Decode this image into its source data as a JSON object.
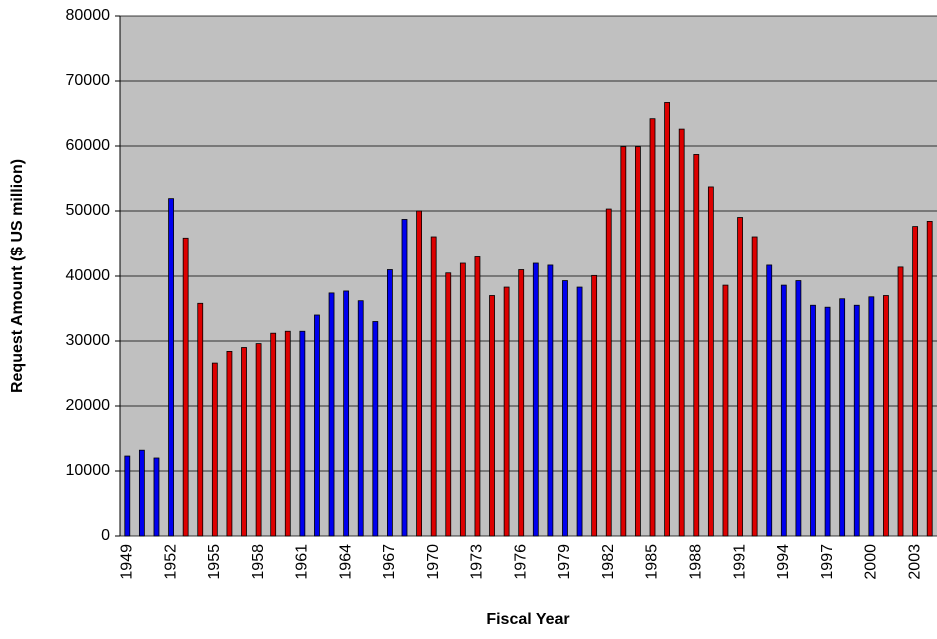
{
  "chart_data": {
    "type": "bar",
    "xlabel": "Fiscal Year",
    "ylabel": "Request Amount ($ US million)",
    "categories": [
      "1949",
      null,
      null,
      "1952",
      null,
      null,
      "1955",
      null,
      null,
      "1958",
      null,
      null,
      "1961",
      null,
      null,
      "1964",
      null,
      null,
      "1967",
      null,
      null,
      "1970",
      null,
      null,
      "1973",
      null,
      null,
      "1976",
      null,
      null,
      "1979",
      null,
      null,
      "1982",
      null,
      null,
      "1985",
      null,
      null,
      "1988",
      null,
      null,
      "1991",
      null,
      null,
      "1994",
      null,
      null,
      "1997",
      null,
      null,
      "2000",
      null,
      null,
      "2003",
      null
    ],
    "values": [
      12300,
      13200,
      12000,
      51900,
      45800,
      35800,
      26600,
      28400,
      29000,
      29600,
      31200,
      31500,
      31500,
      34000,
      37400,
      37700,
      36200,
      33000,
      41000,
      48700,
      50000,
      46000,
      40500,
      42000,
      43000,
      37000,
      38300,
      41000,
      42000,
      41700,
      39300,
      38300,
      40100,
      50300,
      59900,
      59900,
      64200,
      66700,
      62600,
      58700,
      53700,
      38600,
      49000,
      46000,
      41700,
      38600,
      39300,
      35500,
      35200,
      36500,
      35500,
      36800,
      37000,
      41400,
      47600,
      48400
    ],
    "colors": [
      "#0000ee",
      "#0000ee",
      "#0000ee",
      "#0000ee",
      "#dd0000",
      "#dd0000",
      "#dd0000",
      "#dd0000",
      "#dd0000",
      "#dd0000",
      "#dd0000",
      "#dd0000",
      "#0000ee",
      "#0000ee",
      "#0000ee",
      "#0000ee",
      "#0000ee",
      "#0000ee",
      "#0000ee",
      "#0000ee",
      "#dd0000",
      "#dd0000",
      "#dd0000",
      "#dd0000",
      "#dd0000",
      "#dd0000",
      "#dd0000",
      "#dd0000",
      "#0000ee",
      "#0000ee",
      "#0000ee",
      "#0000ee",
      "#dd0000",
      "#dd0000",
      "#dd0000",
      "#dd0000",
      "#dd0000",
      "#dd0000",
      "#dd0000",
      "#dd0000",
      "#dd0000",
      "#dd0000",
      "#dd0000",
      "#dd0000",
      "#0000ee",
      "#0000ee",
      "#0000ee",
      "#0000ee",
      "#0000ee",
      "#0000ee",
      "#0000ee",
      "#0000ee",
      "#dd0000",
      "#dd0000",
      "#dd0000",
      "#dd0000"
    ],
    "ylim": [
      0,
      80000
    ],
    "yticks": [
      0,
      10000,
      20000,
      30000,
      40000,
      50000,
      60000,
      70000,
      80000
    ],
    "grid": true
  }
}
